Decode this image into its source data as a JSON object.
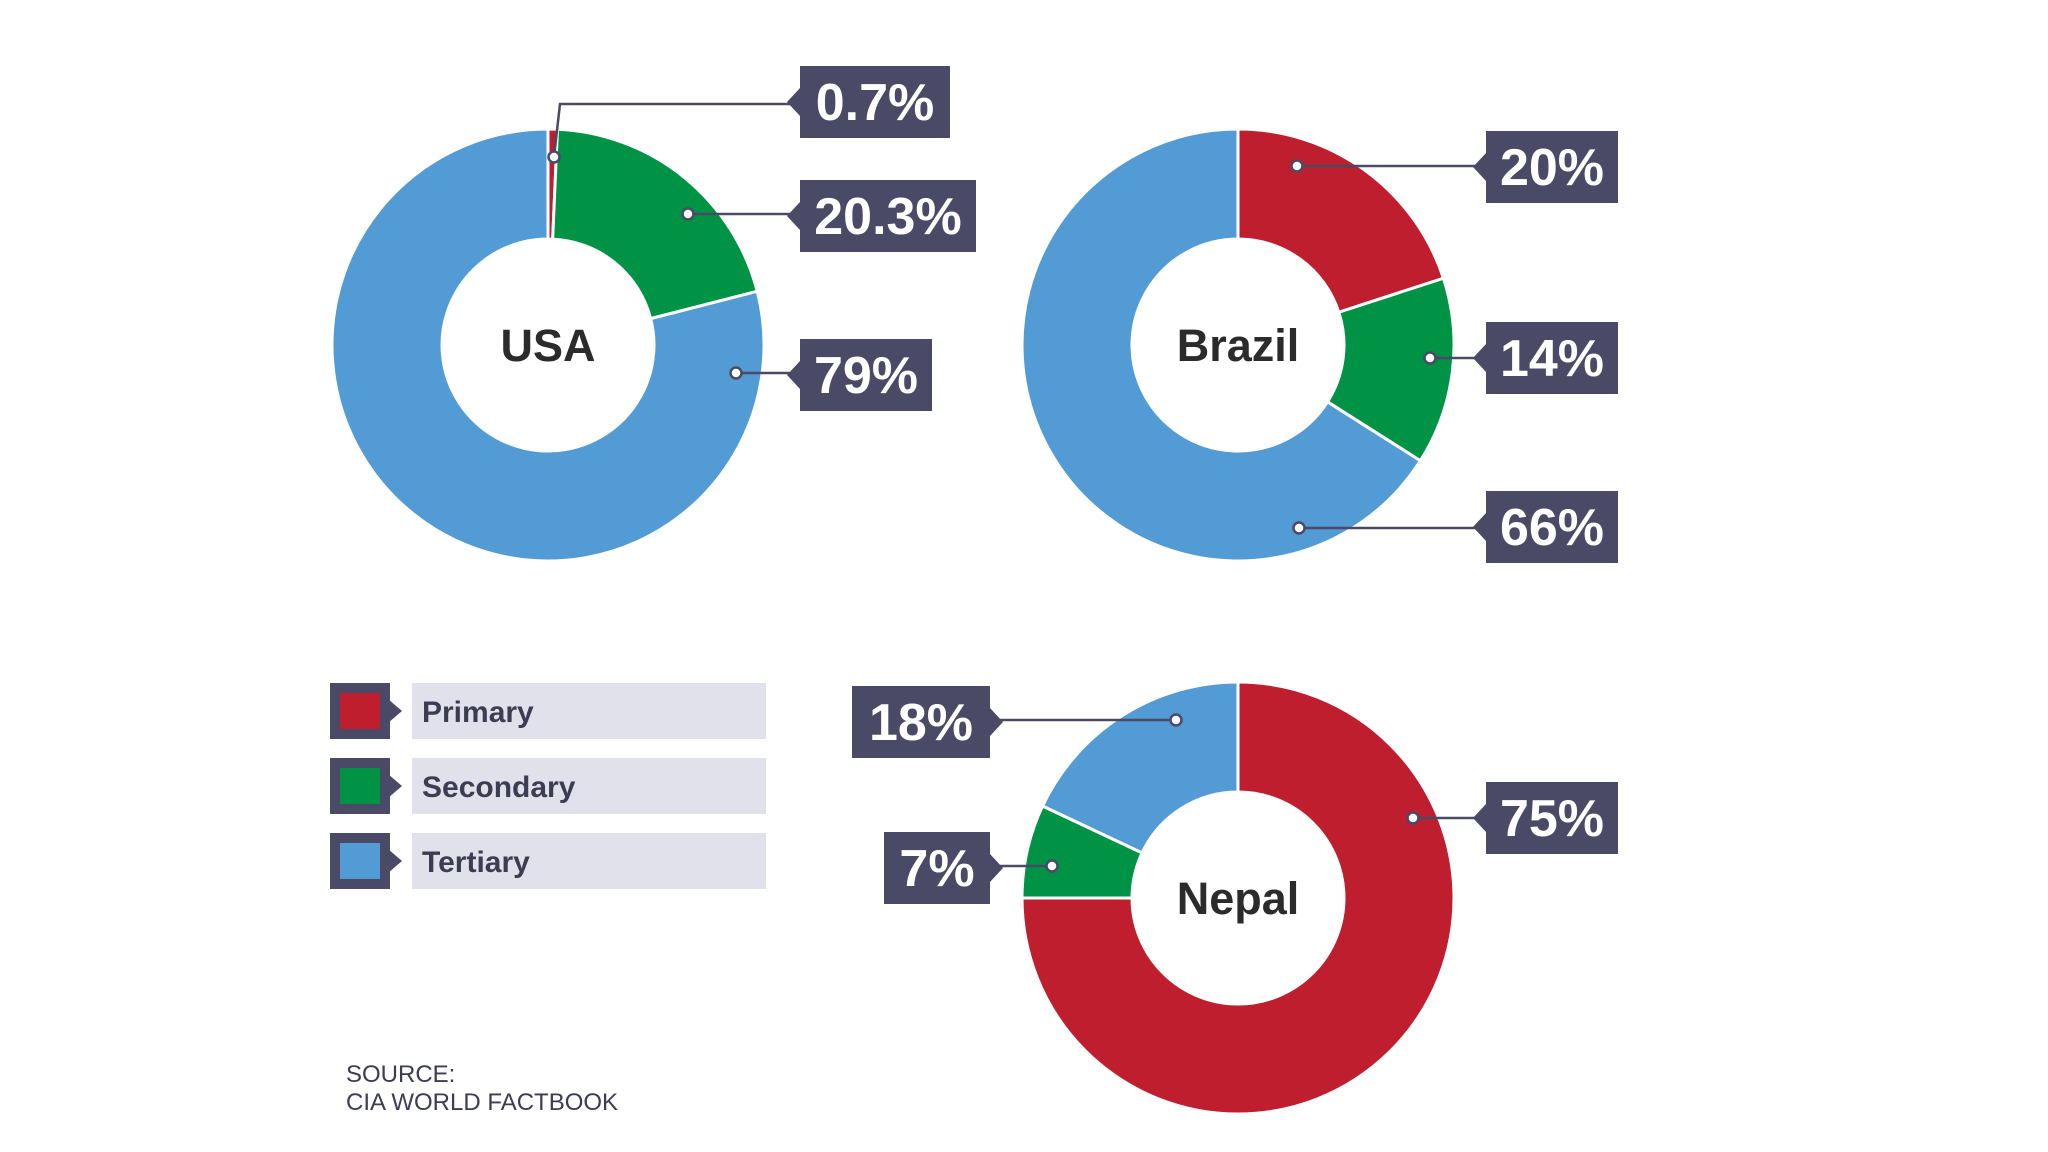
{
  "colors": {
    "primary": "#be1e2d",
    "secondary": "#009245",
    "tertiary": "#539bd5",
    "callout_bg": "#4a4a66",
    "legend_bar": "#e1e1eb"
  },
  "legend": {
    "items": [
      {
        "key": "primary",
        "label": "Primary"
      },
      {
        "key": "secondary",
        "label": "Secondary"
      },
      {
        "key": "tertiary",
        "label": "Tertiary"
      }
    ]
  },
  "source": {
    "line1": "SOURCE:",
    "line2": "CIA WORLD FACTBOOK"
  },
  "chart_data": [
    {
      "type": "pie",
      "title": "USA",
      "categories": [
        "Primary",
        "Secondary",
        "Tertiary"
      ],
      "values": [
        0.7,
        20.3,
        79
      ],
      "value_labels": [
        "0.7%",
        "20.3%",
        "79%"
      ]
    },
    {
      "type": "pie",
      "title": "Brazil",
      "categories": [
        "Primary",
        "Secondary",
        "Tertiary"
      ],
      "values": [
        20,
        14,
        66
      ],
      "value_labels": [
        "20%",
        "14%",
        "66%"
      ]
    },
    {
      "type": "pie",
      "title": "Nepal",
      "categories": [
        "Primary",
        "Secondary",
        "Tertiary"
      ],
      "values": [
        75,
        7,
        18
      ],
      "value_labels": [
        "75%",
        "7%",
        "18%"
      ]
    }
  ]
}
